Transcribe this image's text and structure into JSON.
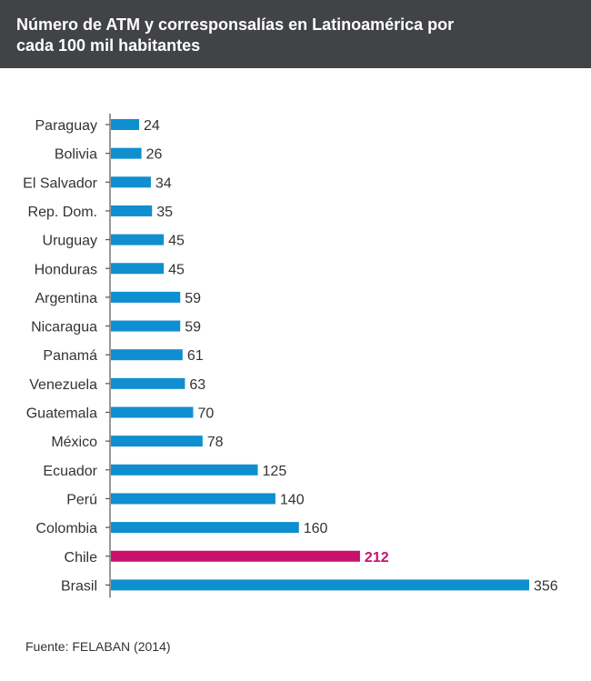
{
  "title": "Número de ATM y corresponsalías en Latinoamérica por cada 100 mil habitantes",
  "source": "Fuente: FELABAN (2014)",
  "colors": {
    "header_bg": "#414346",
    "bar": "#0f8fcf",
    "highlight": "#c8106e",
    "label": "#333333"
  },
  "chart_data": {
    "type": "bar",
    "orientation": "horizontal",
    "title": "Número de ATM y corresponsalías en Latinoamérica por cada 100 mil habitantes",
    "xlabel": "",
    "ylabel": "",
    "xlim": [
      0,
      356
    ],
    "grid": false,
    "highlight_category": "Chile",
    "categories": [
      "Paraguay",
      "Bolivia",
      "El Salvador",
      "Rep. Dom.",
      "Uruguay",
      "Honduras",
      "Argentina",
      "Nicaragua",
      "Panamá",
      "Venezuela",
      "Guatemala",
      "México",
      "Ecuador",
      "Perú",
      "Colombia",
      "Chile",
      "Brasil"
    ],
    "values": [
      24,
      26,
      34,
      35,
      45,
      45,
      59,
      59,
      61,
      63,
      70,
      78,
      125,
      140,
      160,
      212,
      356
    ]
  }
}
